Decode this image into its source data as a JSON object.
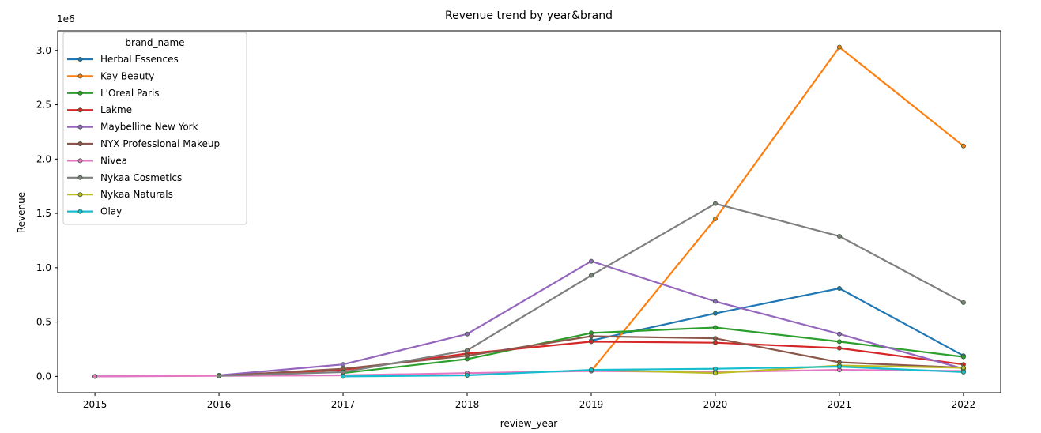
{
  "chart_data": {
    "type": "line",
    "title": "Revenue trend by year&brand",
    "xlabel": "review_year",
    "ylabel": "Revenue",
    "y_offset_label": "1e6",
    "x": [
      2015,
      2016,
      2017,
      2018,
      2019,
      2020,
      2021,
      2022
    ],
    "x_ticks": [
      "2015",
      "2016",
      "2017",
      "2018",
      "2019",
      "2020",
      "2021",
      "2022"
    ],
    "y_ticks": [
      {
        "value": 0.0,
        "label": "0.0"
      },
      {
        "value": 0.5,
        "label": "0.5"
      },
      {
        "value": 1.0,
        "label": "1.0"
      },
      {
        "value": 1.5,
        "label": "1.5"
      },
      {
        "value": 2.0,
        "label": "2.0"
      },
      {
        "value": 2.5,
        "label": "2.5"
      },
      {
        "value": 3.0,
        "label": "3.0"
      }
    ],
    "xlim": [
      2014.7,
      2022.3
    ],
    "ylim": [
      -0.15,
      3.18
    ],
    "y_unit_multiplier": 1000000,
    "grid": false,
    "legend": {
      "title": "brand_name",
      "placement": "top-left"
    },
    "series": [
      {
        "name": "Herbal Essences",
        "color": "#1f77b4",
        "values": [
          null,
          null,
          null,
          null,
          0.33,
          0.58,
          0.81,
          0.19
        ]
      },
      {
        "name": "Kay Beauty",
        "color": "#ff7f0e",
        "values": [
          null,
          null,
          null,
          null,
          0.05,
          1.45,
          3.03,
          2.12
        ]
      },
      {
        "name": "L'Oreal Paris",
        "color": "#2ca02c",
        "values": [
          null,
          null,
          0.03,
          0.16,
          0.4,
          0.45,
          0.32,
          0.18
        ]
      },
      {
        "name": "Lakme",
        "color": "#d62728",
        "values": [
          null,
          0.005,
          0.06,
          0.21,
          0.32,
          0.31,
          0.26,
          0.11
        ]
      },
      {
        "name": "Maybelline New York",
        "color": "#9467bd",
        "values": [
          0.0,
          0.01,
          0.11,
          0.39,
          1.06,
          0.69,
          0.39,
          0.07
        ]
      },
      {
        "name": "NYX Professional Makeup",
        "color": "#8c564b",
        "values": [
          null,
          0.005,
          0.07,
          0.19,
          0.37,
          0.35,
          0.13,
          0.08
        ]
      },
      {
        "name": "Nivea",
        "color": "#e377c2",
        "values": [
          0.0,
          0.005,
          0.01,
          0.03,
          0.05,
          0.04,
          0.06,
          0.05
        ]
      },
      {
        "name": "Nykaa Cosmetics",
        "color": "#7f7f7f",
        "values": [
          null,
          0.005,
          0.04,
          0.24,
          0.93,
          1.59,
          1.29,
          0.68
        ]
      },
      {
        "name": "Nykaa Naturals",
        "color": "#bcbd22",
        "values": [
          null,
          null,
          null,
          null,
          0.06,
          0.03,
          0.1,
          0.08
        ]
      },
      {
        "name": "Olay",
        "color": "#17becf",
        "values": [
          null,
          null,
          0.0,
          0.01,
          0.06,
          0.07,
          0.09,
          0.04
        ]
      }
    ]
  }
}
